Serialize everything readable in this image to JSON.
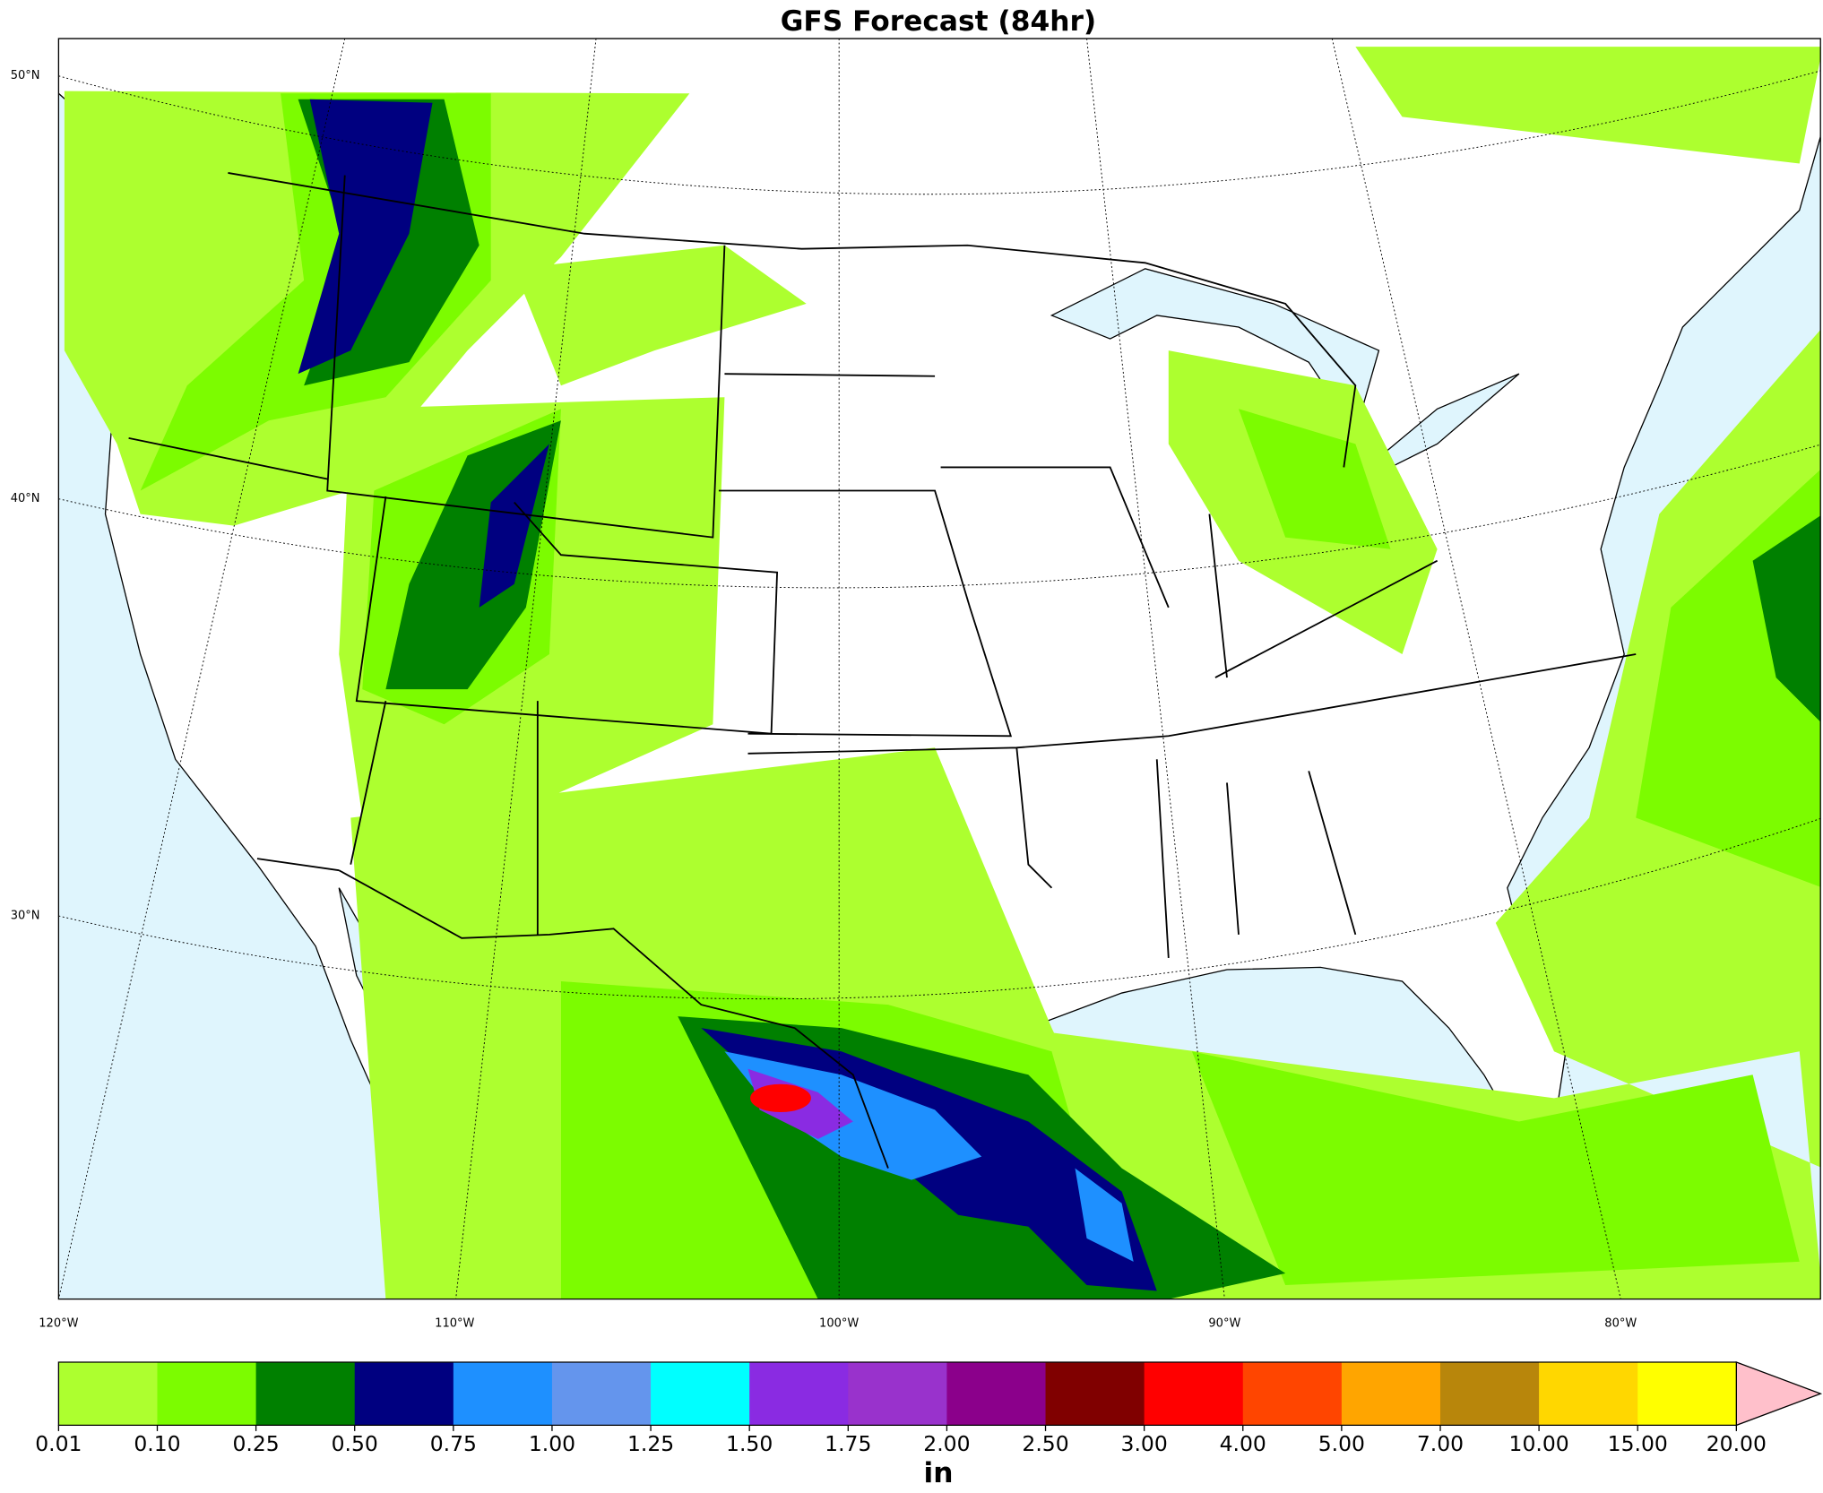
{
  "title": "GFS Forecast (84hr)",
  "map": {
    "lat_labels": [
      "50°N",
      "40°N",
      "30°N"
    ],
    "lon_labels": [
      "120°W",
      "110°W",
      "100°W",
      "90°W",
      "80°W"
    ]
  },
  "colorbar": {
    "levels": [
      "0.01",
      "0.10",
      "0.25",
      "0.50",
      "0.75",
      "1.00",
      "1.25",
      "1.50",
      "1.75",
      "2.00",
      "2.50",
      "3.00",
      "4.00",
      "5.00",
      "7.00",
      "10.00",
      "15.00",
      "20.00"
    ],
    "colors": [
      "#adff2f",
      "#7cfc00",
      "#008000",
      "#000080",
      "#1e90ff",
      "#6495ed",
      "#00ffff",
      "#8a2be2",
      "#9932cc",
      "#8b008b",
      "#800000",
      "#ff0000",
      "#ff4500",
      "#ffa500",
      "#b8860b",
      "#ffd700",
      "#ffff00"
    ],
    "extend_color": "#ffc0cb",
    "label": "in"
  }
}
